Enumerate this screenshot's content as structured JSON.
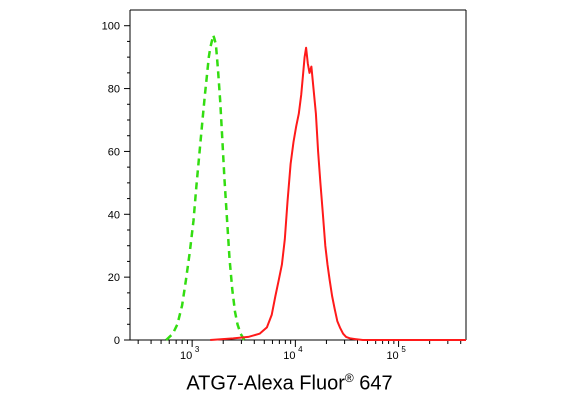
{
  "chart_data": {
    "type": "line",
    "title": "",
    "xlabel": "ATG7-Alexa Fluor® 647",
    "xlabel_parts": {
      "main": "ATG7-Alexa Fluor",
      "sup": "®",
      "tail": " 647"
    },
    "ylabel": "",
    "x_scale": "log",
    "xlim": [
      250,
      450000
    ],
    "ylim": [
      0,
      105
    ],
    "x_ticks": [
      {
        "value": 1000,
        "base": "10",
        "exp": "3"
      },
      {
        "value": 10000,
        "base": "10",
        "exp": "4"
      },
      {
        "value": 100000,
        "base": "10",
        "exp": "5"
      }
    ],
    "y_ticks": [
      "0",
      "20",
      "40",
      "60",
      "80",
      "100"
    ],
    "grid": false,
    "series": [
      {
        "color": "#33dd11",
        "dash": "dashed",
        "x": [
          560,
          650,
          720,
          800,
          870,
          950,
          1030,
          1100,
          1180,
          1260,
          1330,
          1400,
          1450,
          1500,
          1550,
          1600,
          1640,
          1700,
          1780,
          1870,
          1960,
          2060,
          2180,
          2300,
          2450,
          2600,
          2750,
          2950,
          3200
        ],
        "y": [
          0,
          2,
          5,
          11,
          19,
          28,
          38,
          49,
          60,
          70,
          78,
          85,
          90,
          93,
          95,
          97,
          96,
          94,
          86,
          76,
          64,
          51,
          38,
          26,
          16,
          9,
          5,
          2,
          0
        ]
      },
      {
        "color": "#ff1a1a",
        "dash": "solid",
        "x": [
          1500,
          2500,
          3500,
          4500,
          5300,
          5900,
          6400,
          6900,
          7400,
          7900,
          8400,
          9000,
          9600,
          10200,
          10800,
          11400,
          11900,
          12300,
          12700,
          13200,
          13700,
          14300,
          15000,
          15800,
          16600,
          17500,
          18500,
          19500,
          20500,
          21500,
          22700,
          24000,
          25500,
          27000,
          29000,
          31000,
          34000,
          38000,
          45000,
          60000,
          100000,
          200000,
          450000
        ],
        "y": [
          0,
          0.5,
          1,
          2,
          4,
          8,
          14,
          19,
          24,
          32,
          44,
          56,
          63,
          68,
          72,
          78,
          85,
          90,
          93,
          88,
          85,
          87,
          80,
          72,
          60,
          50,
          40,
          30,
          24,
          19,
          14,
          10,
          6,
          4,
          2,
          1,
          0.5,
          0.3,
          0,
          0,
          0,
          0,
          0
        ]
      }
    ]
  }
}
